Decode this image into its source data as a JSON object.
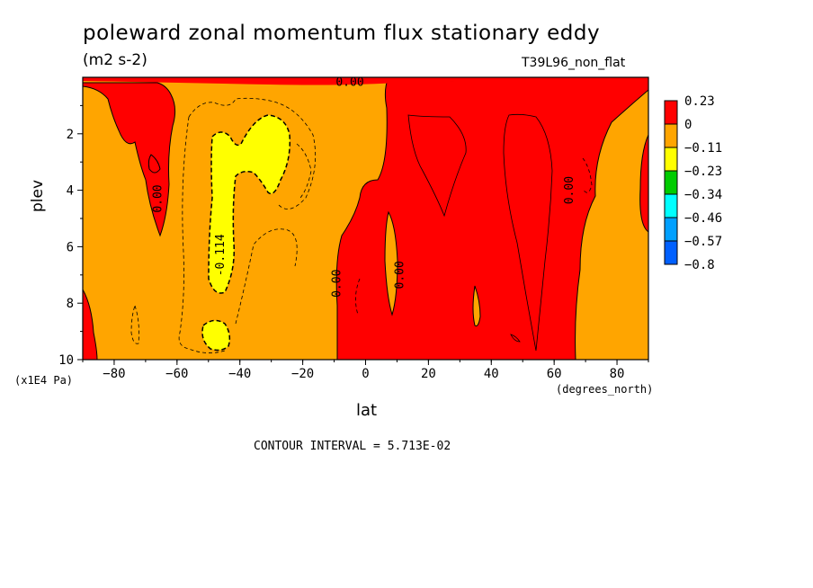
{
  "title": "poleward zonal momentum flux stationary eddy",
  "units": "(m2 s-2)",
  "run_label": "T39L96_non_flat",
  "contour_interval": "CONTOUR INTERVAL = 5.713E-02",
  "chart_data": {
    "type": "heatmap",
    "title": "poleward zonal momentum flux stationary eddy",
    "xlabel": "lat",
    "xunits": "(degrees_north)",
    "ylabel": "plev",
    "yunits": "(x1E4 Pa)",
    "xlim": [
      -90,
      90
    ],
    "ylim": [
      10,
      0
    ],
    "x_ticks": [
      -80,
      -60,
      -40,
      -20,
      0,
      20,
      40,
      60,
      80
    ],
    "y_ticks": [
      2,
      4,
      6,
      8,
      10
    ],
    "colorbar": {
      "levels": [
        "0.23",
        "0",
        "-0.11",
        "-0.23",
        "-0.34",
        "-0.46",
        "-0.57",
        "-0.8"
      ],
      "colors": [
        "#ff0000",
        "#ffa500",
        "#ffff00",
        "#00cc00",
        "#00ffff",
        "#00a0ff",
        "#0060ff"
      ]
    },
    "contour_labels": [
      {
        "text": "0.00",
        "x": -65,
        "y": 4.3
      },
      {
        "text": "-0.114",
        "x": -45,
        "y": 6.3
      },
      {
        "text": "0.00",
        "x": -8,
        "y": 7.3
      },
      {
        "text": "0.00",
        "x": 12,
        "y": 7.0
      },
      {
        "text": "0.00",
        "x": 66,
        "y": 4.0
      },
      {
        "text": "0.00",
        "x": -5,
        "y": 0.3
      }
    ]
  }
}
